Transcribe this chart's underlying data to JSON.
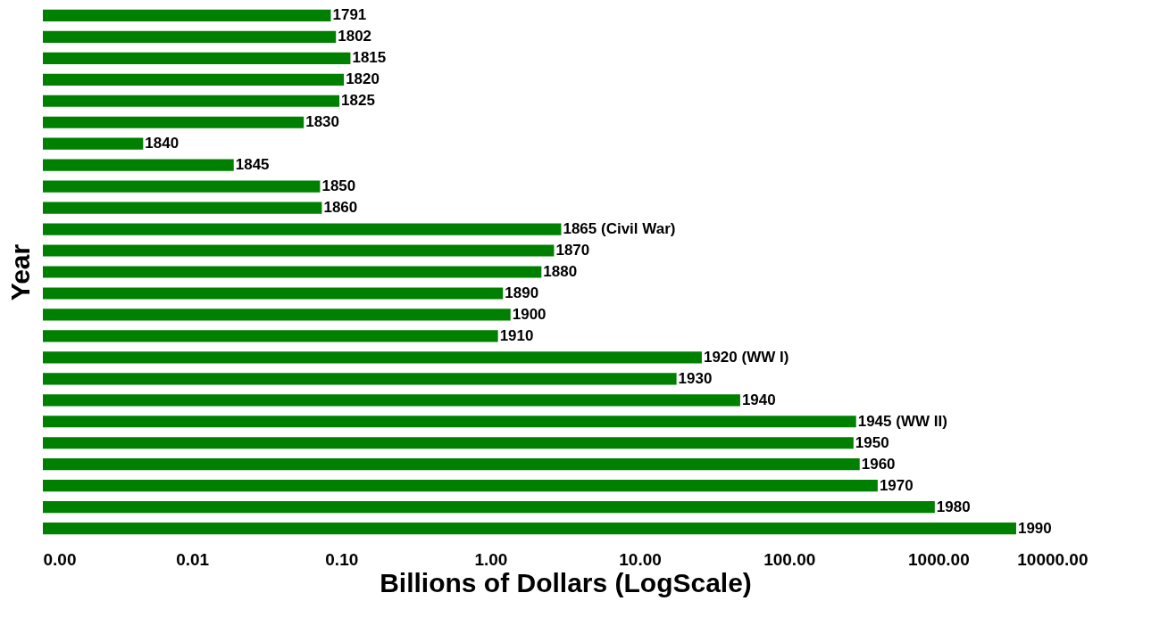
{
  "chart_data": {
    "type": "bar",
    "orientation": "horizontal",
    "log": "x",
    "xlabel": "Billions of Dollars (LogScale)",
    "ylabel": "Year",
    "categories": [
      "1791",
      "1802",
      "1815",
      "1820",
      "1825",
      "1830",
      "1840",
      "1845",
      "1850",
      "1860",
      "1865 (Civil War)",
      "1870",
      "1880",
      "1890",
      "1900",
      "1910",
      "1920 (WW I)",
      "1930",
      "1940",
      "1945 (WW II)",
      "1950",
      "1960",
      "1970",
      "1980",
      "1990"
    ],
    "values": [
      0.085,
      0.092,
      0.115,
      0.104,
      0.097,
      0.056,
      0.0047,
      0.019,
      0.072,
      0.074,
      2.97,
      2.66,
      2.19,
      1.21,
      1.36,
      1.12,
      26,
      17.6,
      47,
      281,
      270,
      297,
      392,
      946,
      3320
    ],
    "color": "#008000",
    "xlim": [
      0.001,
      10000
    ],
    "xticks": [
      {
        "value": 0.001,
        "label": "0.00"
      },
      {
        "value": 0.01,
        "label": "0.01"
      },
      {
        "value": 0.1,
        "label": "0.10"
      },
      {
        "value": 1,
        "label": "1.00"
      },
      {
        "value": 10,
        "label": "10.00"
      },
      {
        "value": 100,
        "label": "100.00"
      },
      {
        "value": 1000,
        "label": "1000.00"
      },
      {
        "value": 10000,
        "label": "10000.00"
      }
    ],
    "tick_labels": "x",
    "grid": false
  }
}
